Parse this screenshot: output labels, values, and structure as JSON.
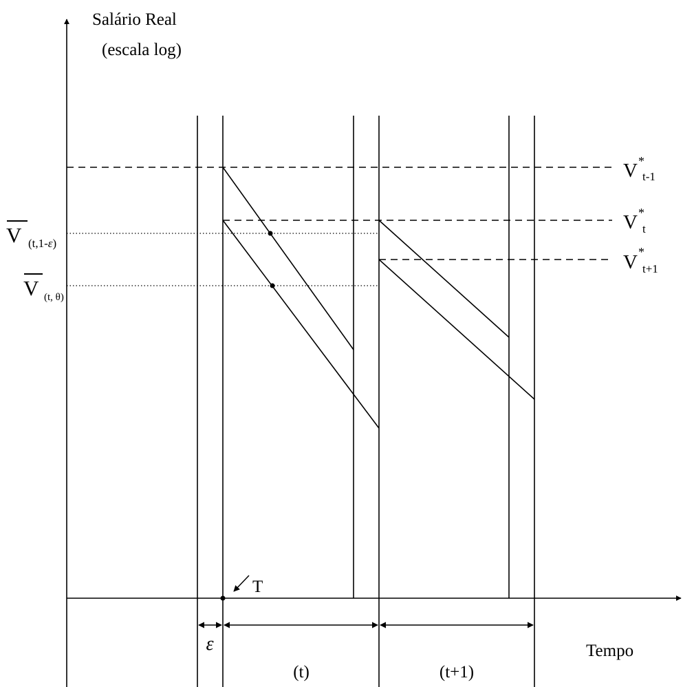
{
  "axes": {
    "y_title_line1": "Salário Real",
    "y_title_line2": "(escala log)",
    "x_title": "Tempo"
  },
  "reference_levels": {
    "v_star_t_minus_1": {
      "base": "V",
      "sup": "*",
      "sub": "t-1"
    },
    "v_star_t": {
      "base": "V",
      "sup": "*",
      "sub": "t"
    },
    "v_star_t_plus_1": {
      "base": "V",
      "sup": "*",
      "sub": "t+1"
    }
  },
  "average_levels": {
    "v_bar_1_minus_eps": {
      "base": "V",
      "sub_open": "(t,1-",
      "sub_eps": "ε",
      "sub_close": ")"
    },
    "v_bar_theta": {
      "base": "V",
      "sub": "(t, θ)"
    }
  },
  "intervals": {
    "epsilon": "ε",
    "period_t": "(t)",
    "period_t_plus_1": "(t+1)"
  },
  "markers": {
    "T": "T"
  },
  "colors": {
    "ink": "#000000",
    "background": "#ffffff"
  }
}
